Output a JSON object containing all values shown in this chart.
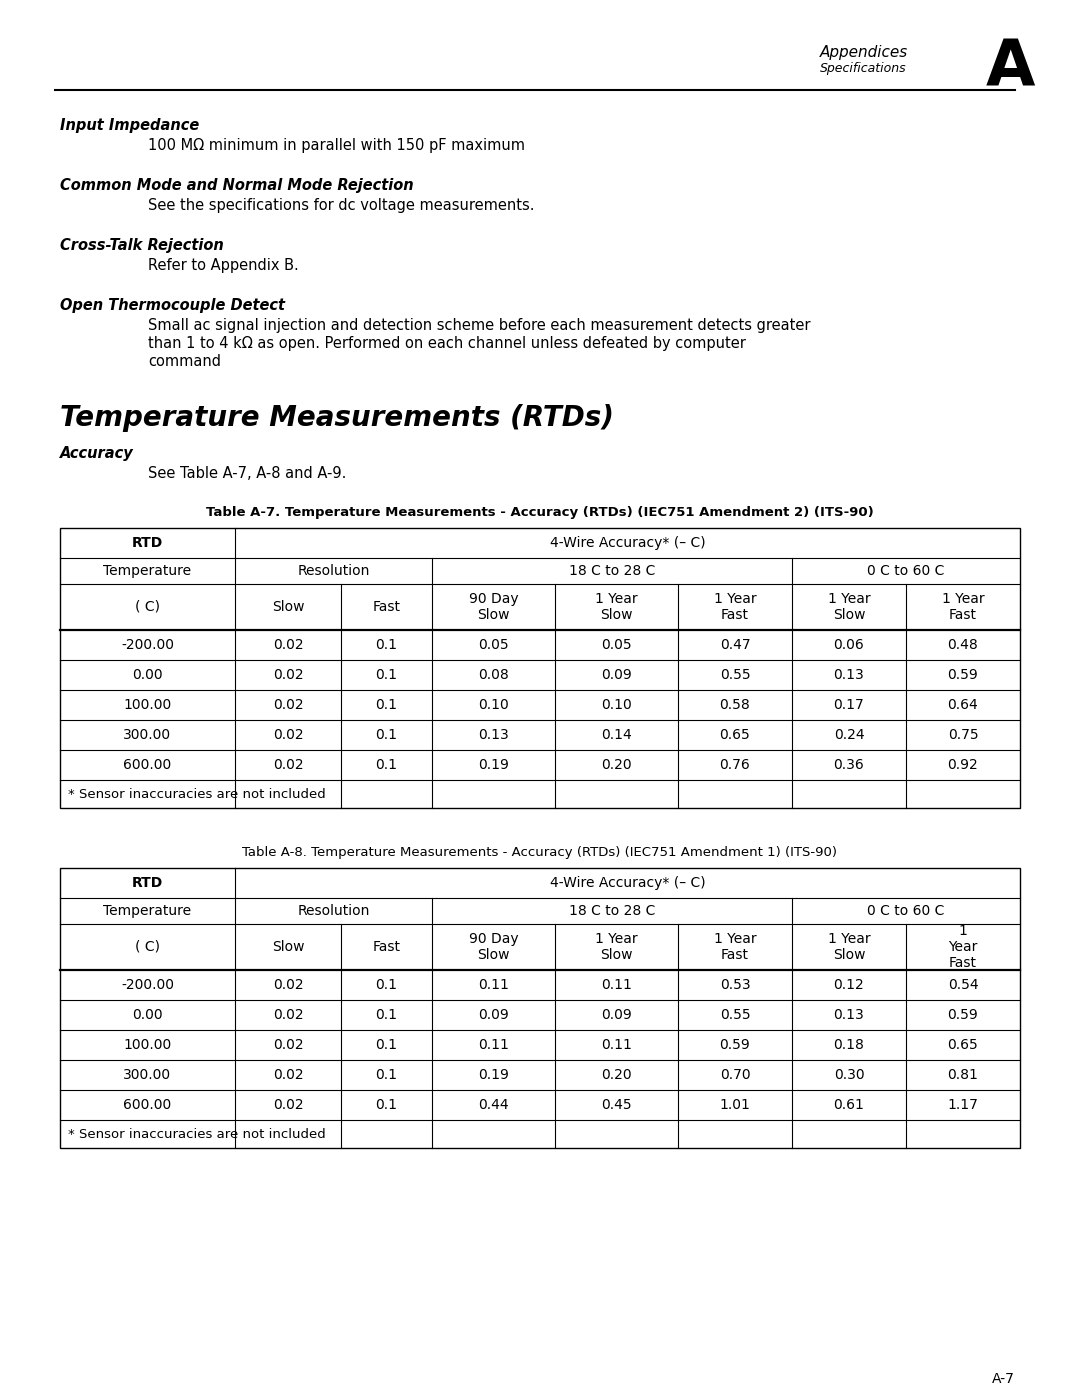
{
  "page_header_title": "Appendices",
  "page_header_subtitle": "Specifications",
  "page_header_letter": "A",
  "page_number": "A-7",
  "sections": [
    {
      "heading": "Input Impedance",
      "body": "100 MΩ minimum in parallel with 150 pF maximum"
    },
    {
      "heading": "Common Mode and Normal Mode Rejection",
      "body": "See the specifications for dc voltage measurements."
    },
    {
      "heading": "Cross-Talk Rejection",
      "body": "Refer to Appendix B."
    },
    {
      "heading": "Open Thermocouple Detect",
      "body": "Small ac signal injection and detection scheme before each measurement detects greater\nthan 1 to 4 kΩ as open. Performed on each channel unless defeated by computer\ncommand"
    }
  ],
  "section_title": "Temperature Measurements (RTDs)",
  "accuracy_heading": "Accuracy",
  "accuracy_body": "See Table A-7, A-8 and A-9.",
  "table1_caption": "Table A-7. Temperature Measurements - Accuracy (RTDs) (IEC751 Amendment 2) (ITS-90)",
  "table1_caption_bold": true,
  "table1": {
    "col_header_row3": [
      "( C)",
      "Slow",
      "Fast",
      "90 Day\nSlow",
      "1 Year\nSlow",
      "1 Year\nFast",
      "1 Year\nSlow",
      "1 Year\nFast"
    ],
    "data": [
      [
        "-200.00",
        "0.02",
        "0.1",
        "0.05",
        "0.05",
        "0.47",
        "0.06",
        "0.48"
      ],
      [
        "0.00",
        "0.02",
        "0.1",
        "0.08",
        "0.09",
        "0.55",
        "0.13",
        "0.59"
      ],
      [
        "100.00",
        "0.02",
        "0.1",
        "0.10",
        "0.10",
        "0.58",
        "0.17",
        "0.64"
      ],
      [
        "300.00",
        "0.02",
        "0.1",
        "0.13",
        "0.14",
        "0.65",
        "0.24",
        "0.75"
      ],
      [
        "600.00",
        "0.02",
        "0.1",
        "0.19",
        "0.20",
        "0.76",
        "0.36",
        "0.92"
      ]
    ],
    "footnote": "* Sensor inaccuracies are not included"
  },
  "table2_caption": "Table A-8. Temperature Measurements - Accuracy (RTDs) (IEC751 Amendment 1) (ITS-90)",
  "table2_caption_bold": false,
  "table2": {
    "col_header_row3": [
      "( C)",
      "Slow",
      "Fast",
      "90 Day\nSlow",
      "1 Year\nSlow",
      "1 Year\nFast",
      "1 Year\nSlow",
      "1\nYear\nFast"
    ],
    "data": [
      [
        "-200.00",
        "0.02",
        "0.1",
        "0.11",
        "0.11",
        "0.53",
        "0.12",
        "0.54"
      ],
      [
        "0.00",
        "0.02",
        "0.1",
        "0.09",
        "0.09",
        "0.55",
        "0.13",
        "0.59"
      ],
      [
        "100.00",
        "0.02",
        "0.1",
        "0.11",
        "0.11",
        "0.59",
        "0.18",
        "0.65"
      ],
      [
        "300.00",
        "0.02",
        "0.1",
        "0.19",
        "0.20",
        "0.70",
        "0.30",
        "0.81"
      ],
      [
        "600.00",
        "0.02",
        "0.1",
        "0.44",
        "0.45",
        "1.01",
        "0.61",
        "1.17"
      ]
    ],
    "footnote": "* Sensor inaccuracies are not included"
  }
}
